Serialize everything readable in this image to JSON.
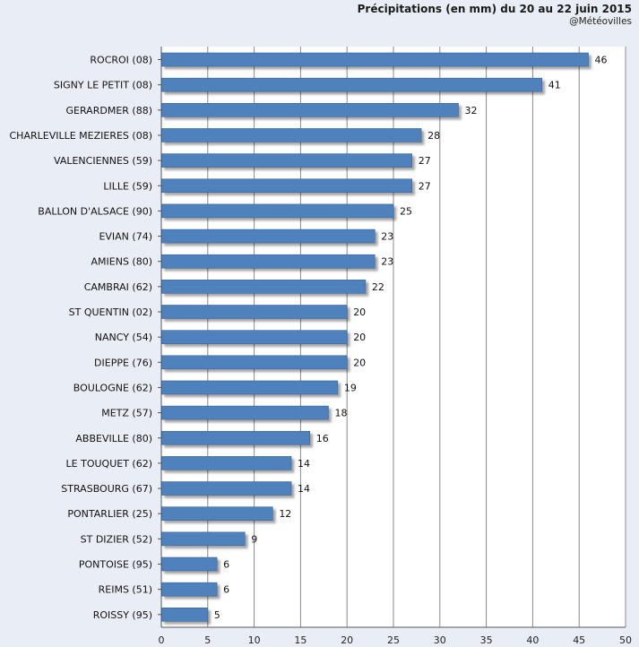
{
  "chart_data": {
    "type": "bar",
    "orientation": "horizontal",
    "title": "Précipitations (en mm) du 20 au 22 juin 2015",
    "subtitle": "@Météovilles",
    "categories": [
      "ROCROI (08)",
      "SIGNY LE PETIT (08)",
      "GERARDMER (88)",
      "CHARLEVILLE MEZIERES (08)",
      "VALENCIENNES (59)",
      "LILLE (59)",
      "BALLON D'ALSACE (90)",
      "EVIAN (74)",
      "AMIENS (80)",
      "CAMBRAI (62)",
      "ST QUENTIN (02)",
      "NANCY (54)",
      "DIEPPE (76)",
      "BOULOGNE (62)",
      "METZ (57)",
      "ABBEVILLE (80)",
      "LE TOUQUET (62)",
      "STRASBOURG (67)",
      "PONTARLIER (25)",
      "ST DIZIER (52)",
      "PONTOISE (95)",
      "REIMS (51)",
      "ROISSY (95)"
    ],
    "values": [
      46,
      41,
      32,
      28,
      27,
      27,
      25,
      23,
      23,
      22,
      20,
      20,
      20,
      19,
      18,
      16,
      14,
      14,
      12,
      9,
      6,
      6,
      5
    ],
    "xlim": [
      0,
      50
    ],
    "xticks": [
      0,
      5,
      10,
      15,
      20,
      25,
      30,
      35,
      40,
      45,
      50
    ],
    "grid": true,
    "colors": {
      "bar": "#4f81bd",
      "bar_edge": "#3b6495",
      "background": "#e9eef6",
      "plot_background": "#ffffff",
      "grid": "#8a8a8a"
    }
  }
}
